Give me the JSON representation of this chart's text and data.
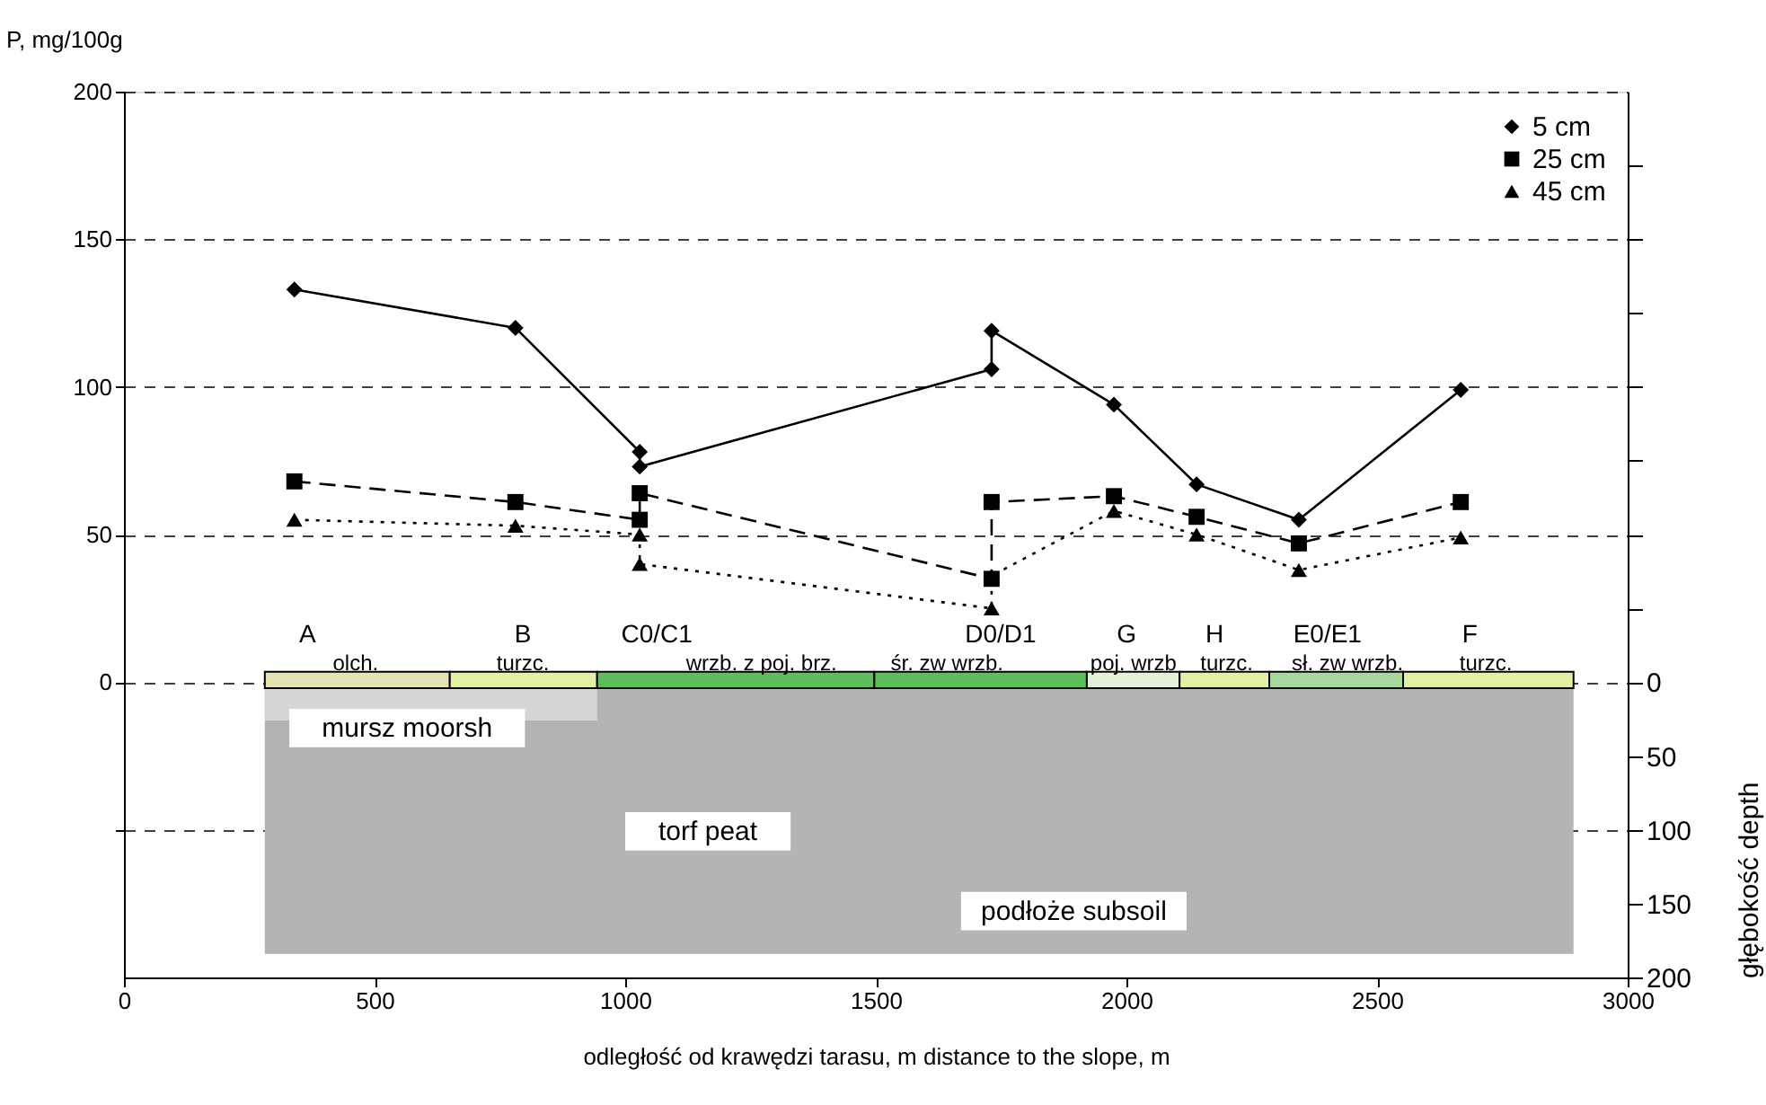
{
  "chart_data": {
    "type": "line",
    "xlabel": "odległość od krawędzi tarasu, m   distance to the slope, m",
    "ylabel": "P, mg/100g",
    "y2label": "głębokość   depth",
    "xlim": [
      0,
      3000
    ],
    "xticks": [
      0,
      500,
      1000,
      1500,
      2000,
      2500,
      3000
    ],
    "ylim": [
      -100,
      200
    ],
    "yticks": [
      {
        "value": -50,
        "label": null
      },
      0,
      50,
      100,
      150,
      200
    ],
    "y2lim": [
      200,
      -400
    ],
    "y2ticks": [
      0,
      50,
      100,
      150,
      200,
      {
        "value": -50,
        "label": null
      },
      {
        "value": -100,
        "label": null
      },
      {
        "value": -150,
        "label": null
      },
      {
        "value": -200,
        "label": null
      },
      {
        "value": -250,
        "label": null
      },
      {
        "value": -300,
        "label": null
      },
      {
        "value": -350,
        "label": null
      }
    ],
    "grid": "y",
    "legend": "top right",
    "series": [
      {
        "name": "5 cm",
        "color": "#000000",
        "marker": "diamond",
        "line_style": "solid",
        "x": [
          340,
          781,
          1029,
          1029,
          1731,
          1731,
          1975,
          2140,
          2344,
          2667
        ],
        "values": [
          133,
          120,
          78,
          73,
          106,
          119,
          94,
          67,
          55,
          99
        ]
      },
      {
        "name": "25 cm",
        "color": "#000000",
        "marker": "square",
        "line_style": "dashed",
        "x": [
          340,
          781,
          1029,
          1029,
          1731,
          1731,
          1975,
          2140,
          2344,
          2667
        ],
        "values": [
          68,
          61,
          55,
          64,
          35,
          61,
          63,
          56,
          47,
          61
        ]
      },
      {
        "name": "45 cm",
        "color": "#000000",
        "marker": "triangle",
        "line_style": "dotted",
        "x": [
          340,
          781,
          1029,
          1029,
          1731,
          1731,
          1975,
          2140,
          2344,
          2667
        ],
        "values": [
          55,
          53,
          50,
          40,
          25,
          36,
          58,
          50,
          38,
          49
        ]
      }
    ],
    "annotations": [
      "A",
      "olch.",
      "B",
      "turzc.",
      "C0/C1",
      "wrzb. z poj. brz.",
      "D0/D1",
      "śr. zw wrzb.",
      "G",
      "poj. wrzb",
      "H",
      "turzc.",
      "E0/E1",
      "sł. zw wrzb.",
      "F",
      "turzc.",
      "mursz   moorsh",
      "torf   peat",
      "podłoże   subsoil"
    ]
  }
}
